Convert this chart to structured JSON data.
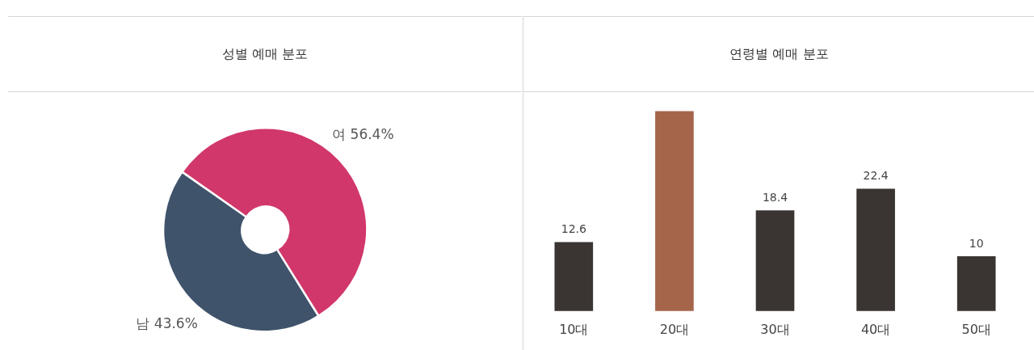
{
  "chart_data": [
    {
      "type": "donut",
      "title": "성별 예매 분포",
      "categories": [
        "여",
        "남"
      ],
      "values": [
        56.4,
        43.6
      ],
      "colors": [
        "#d1376a",
        "#3f536b"
      ],
      "value_labels": [
        "56.4%",
        "43.6%"
      ],
      "legend": false
    },
    {
      "type": "bar",
      "title": "연령별 예매 분포",
      "categories": [
        "10대",
        "20대",
        "30대",
        "40대",
        "50대"
      ],
      "values": [
        12.6,
        36.6,
        18.4,
        22.4,
        10
      ],
      "colors": [
        "#3a3532",
        "#a5654a",
        "#3a3532",
        "#3a3532",
        "#3a3532"
      ],
      "value_labels": [
        "12.6",
        null,
        "18.4",
        "22.4",
        "10"
      ],
      "ylim": [
        0,
        40
      ],
      "grid": false,
      "legend": false
    }
  ]
}
